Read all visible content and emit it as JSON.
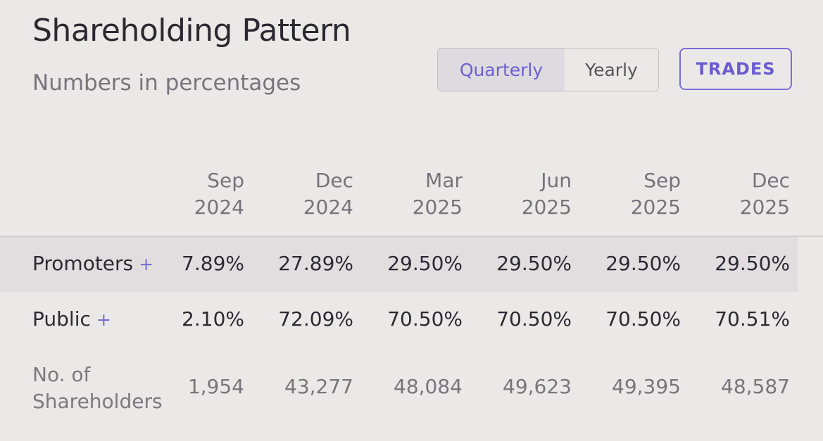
{
  "header": {
    "title": "Shareholding Pattern",
    "subtitle": "Numbers in percentages"
  },
  "toggle": {
    "options": [
      "Quarterly",
      "Yearly"
    ],
    "selected": "Quarterly"
  },
  "trades_button": "TRADES",
  "accent_color": "#6c5fcf",
  "table": {
    "columns": [
      {
        "month": "Sep",
        "year": "2024"
      },
      {
        "month": "Dec",
        "year": "2024"
      },
      {
        "month": "Mar",
        "year": "2025"
      },
      {
        "month": "Jun",
        "year": "2025"
      },
      {
        "month": "Sep",
        "year": "2025"
      },
      {
        "month": "Dec",
        "year": "2025"
      }
    ],
    "rows": [
      {
        "label": "Promoters",
        "expandable": "+",
        "values": [
          "7.89%",
          "27.89%",
          "29.50%",
          "29.50%",
          "29.50%",
          "29.50%"
        ]
      },
      {
        "label": "Public",
        "expandable": "+",
        "values": [
          "2.10%",
          "72.09%",
          "70.50%",
          "70.50%",
          "70.50%",
          "70.51%"
        ]
      },
      {
        "label_line1": "No. of",
        "label_line2": "Shareholders",
        "values": [
          "1,954",
          "43,277",
          "48,084",
          "49,623",
          "49,395",
          "48,587"
        ]
      }
    ]
  }
}
